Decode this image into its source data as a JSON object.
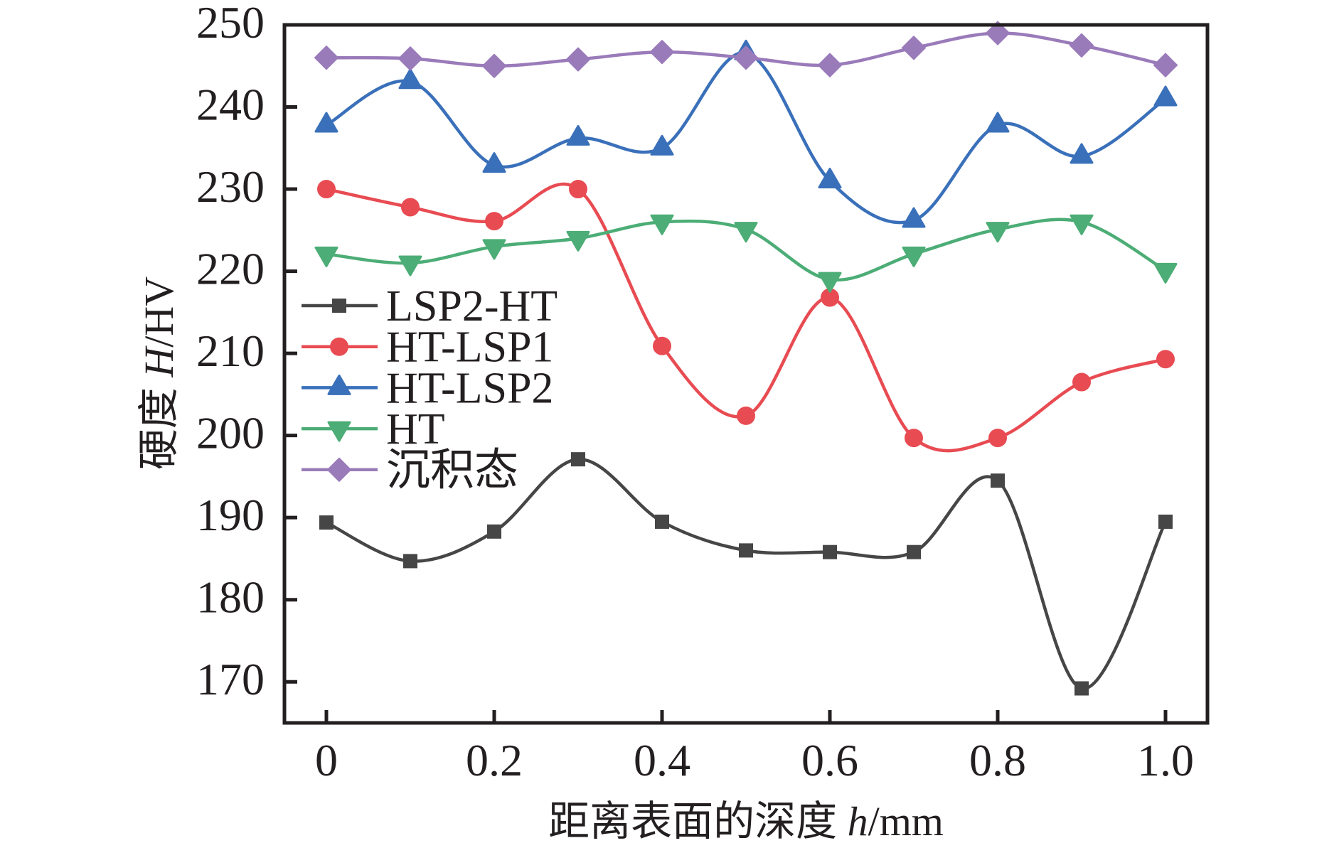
{
  "chart_data": {
    "type": "line",
    "title": "",
    "xlabel": {
      "prefix": "距离表面的深度 ",
      "symbol": "h",
      "unit": "/mm"
    },
    "ylabel": {
      "prefix": "硬度 ",
      "symbol": "H",
      "unit": "/HV"
    },
    "xlim": [
      -0.05,
      1.05
    ],
    "ylim": [
      165,
      250
    ],
    "x": [
      0,
      0.1,
      0.2,
      0.3,
      0.4,
      0.5,
      0.6,
      0.7,
      0.8,
      0.9,
      1.0
    ],
    "x_ticks": [
      0,
      0.2,
      0.4,
      0.6,
      0.8,
      1.0
    ],
    "x_tick_labels": [
      "0",
      "0.2",
      "0.4",
      "0.6",
      "0.8",
      "1.0"
    ],
    "y_ticks": [
      170,
      180,
      190,
      200,
      210,
      220,
      230,
      240,
      250
    ],
    "y_tick_labels": [
      "170",
      "180",
      "190",
      "200",
      "210",
      "220",
      "230",
      "240",
      "250"
    ],
    "grid": false,
    "legend_position": "center-left",
    "smooth": true,
    "series": [
      {
        "name": "LSP2-HT",
        "marker": "square",
        "color": "#464646",
        "values": [
          189.4,
          184.7,
          188.3,
          197.1,
          189.5,
          186.0,
          185.8,
          185.8,
          194.5,
          169.2,
          189.5
        ]
      },
      {
        "name": "HT-LSP1",
        "marker": "circle",
        "color": "#E84B52",
        "values": [
          230.0,
          227.8,
          226.1,
          230.0,
          210.9,
          202.4,
          216.8,
          199.7,
          199.7,
          206.5,
          209.3
        ]
      },
      {
        "name": "HT-LSP2",
        "marker": "triangle-up",
        "color": "#3A70BA",
        "values": [
          237.8,
          243.1,
          232.9,
          236.2,
          235.0,
          246.6,
          231.0,
          226.2,
          237.8,
          234.0,
          241.0
        ]
      },
      {
        "name": "HT",
        "marker": "triangle-down",
        "color": "#4CAD76",
        "values": [
          222.1,
          221.0,
          223.0,
          224.0,
          226.0,
          225.1,
          219.0,
          222.1,
          225.1,
          226.0,
          220.1
        ]
      },
      {
        "name": "沉积态",
        "marker": "diamond",
        "color": "#9A7BBA",
        "values": [
          246.0,
          245.9,
          245.0,
          245.8,
          246.7,
          246.0,
          245.1,
          247.2,
          249.0,
          247.5,
          245.1
        ]
      }
    ]
  }
}
